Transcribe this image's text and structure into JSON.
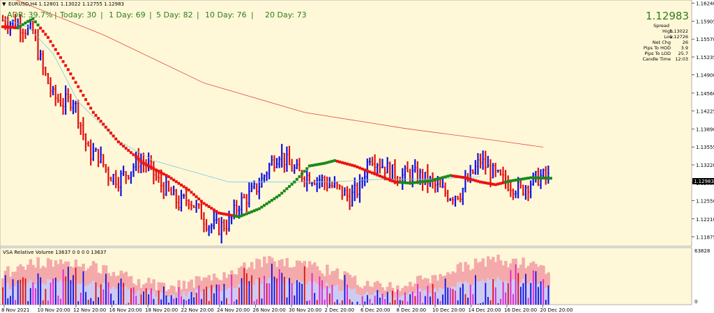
{
  "window": {
    "symbol_line": "EURUSD,H4  1.12801 1.13022 1.12755 1.12983",
    "volume_label": "VSA Relative Volume 13637 0 0 0 0 13637"
  },
  "adr_bar": {
    "adr": "ADR: 39.7%",
    "today": "Today: 30",
    "d1": "1 Day: 69",
    "d5": "5 Day: 82",
    "d10": "10 Day: 76",
    "d20": "20 Day: 73",
    "sep": "|"
  },
  "info_panel": {
    "price": "1.12983",
    "spread_label": "Spread",
    "high_label": "High",
    "high_value": "1.13022",
    "low_label": "Low",
    "low_value": "1.12726",
    "netchg_label": "Net Chg",
    "netchg_value": "26",
    "hod_label": "Pips To HOD",
    "hod_value": "3.9",
    "lod_label": "Pips To LOD",
    "lod_value": "25.7",
    "candle_label": "Candle Time",
    "candle_value": "12:03"
  },
  "current_price_tag": "1.12983",
  "colors": {
    "background": "#FFF8D8",
    "candle_up": "#1010E0",
    "candle_down": "#E01010",
    "ma_slow": "#E8453C",
    "ma_mid": "#7EC8E3",
    "trend_up": "#1A8A1A",
    "trend_down": "#EE1111",
    "adr_text": "#2E7D1A"
  },
  "chart_data": [
    {
      "type": "candlestick",
      "title": "EURUSD,H4  1.12801 1.13022 1.12755 1.12983",
      "y_ticks": [
        "1.16240",
        "1.15905",
        "1.15570",
        "1.15235",
        "1.14900",
        "1.14560",
        "1.14225",
        "1.13890",
        "1.13555",
        "1.13220",
        "1.12885",
        "1.12550",
        "1.12210",
        "1.11875"
      ],
      "ylim": [
        1.117,
        1.163
      ],
      "x_ticks": [
        "8 Nov 2021",
        "10 Nov 20:00",
        "12 Nov 20:00",
        "16 Nov 20:00",
        "18 Nov 20:00",
        "22 Nov 20:00",
        "24 Nov 20:00",
        "26 Nov 20:00",
        "30 Nov 20:00",
        "2 Dec 20:00",
        "6 Dec 20:00",
        "8 Dec 20:00",
        "10 Dec 20:00",
        "14 Dec 20:00",
        "16 Dec 20:00",
        "20 Dec 20:00"
      ],
      "close_path": [
        [
          0,
          1.1592
        ],
        [
          6,
          1.1585
        ],
        [
          12,
          1.1568
        ],
        [
          16,
          1.15
        ],
        [
          20,
          1.145
        ],
        [
          24,
          1.1438
        ],
        [
          28,
          1.1445
        ],
        [
          30,
          1.1415
        ],
        [
          34,
          1.1345
        ],
        [
          38,
          1.134
        ],
        [
          42,
          1.1305
        ],
        [
          46,
          1.1295
        ],
        [
          50,
          1.131
        ],
        [
          54,
          1.133
        ],
        [
          58,
          1.132
        ],
        [
          62,
          1.129
        ],
        [
          66,
          1.127
        ],
        [
          70,
          1.125
        ],
        [
          74,
          1.126
        ],
        [
          78,
          1.1235
        ],
        [
          82,
          1.121
        ],
        [
          86,
          1.1205
        ],
        [
          90,
          1.1215
        ],
        [
          94,
          1.125
        ],
        [
          98,
          1.1265
        ],
        [
          102,
          1.1285
        ],
        [
          106,
          1.132
        ],
        [
          110,
          1.1345
        ],
        [
          114,
          1.132
        ],
        [
          118,
          1.1305
        ],
        [
          122,
          1.13
        ],
        [
          126,
          1.1295
        ],
        [
          130,
          1.1285
        ],
        [
          134,
          1.1275
        ],
        [
          138,
          1.126
        ],
        [
          142,
          1.128
        ],
        [
          146,
          1.134
        ],
        [
          150,
          1.1325
        ],
        [
          154,
          1.131
        ],
        [
          158,
          1.13
        ],
        [
          162,
          1.1305
        ],
        [
          166,
          1.13
        ],
        [
          170,
          1.129
        ],
        [
          174,
          1.1275
        ],
        [
          178,
          1.1265
        ],
        [
          182,
          1.127
        ],
        [
          186,
          1.13
        ],
        [
          190,
          1.133
        ],
        [
          194,
          1.131
        ],
        [
          198,
          1.1295
        ],
        [
          202,
          1.1285
        ],
        [
          206,
          1.1275
        ],
        [
          210,
          1.129
        ],
        [
          214,
          1.13
        ],
        [
          218,
          1.1298
        ]
      ],
      "current_price": 1.12983,
      "indicators": [
        {
          "name": "",
          "points": [
            [
              0,
              1.164
            ],
            [
              40,
              1.1565
            ],
            [
              80,
              1.1475
            ],
            [
              120,
              1.142
            ],
            [
              160,
              1.139
            ],
            [
              200,
              1.1365
            ],
            [
              215,
              1.1355
            ]
          ]
        },
        {
          "name": "",
          "points": [
            [
              0,
              1.1595
            ],
            [
              10,
              1.158
            ],
            [
              20,
              1.153
            ],
            [
              30,
              1.144
            ],
            [
              45,
              1.137
            ],
            [
              60,
              1.133
            ],
            [
              75,
              1.131
            ],
            [
              90,
              1.129
            ],
            [
              110,
              1.129
            ],
            [
              130,
              1.129
            ],
            [
              150,
              1.1295
            ],
            [
              170,
              1.1295
            ],
            [
              190,
              1.13
            ]
          ]
        }
      ],
      "trend_line": [
        [
          0,
          1.158
        ],
        [
          6,
          1.1578
        ],
        [
          10,
          1.159
        ],
        [
          12,
          1.1595
        ],
        [
          18,
          1.156
        ],
        [
          26,
          1.15
        ],
        [
          36,
          1.142
        ],
        [
          46,
          1.1365
        ],
        [
          56,
          1.1325
        ],
        [
          66,
          1.13
        ],
        [
          74,
          1.1275
        ],
        [
          80,
          1.125
        ],
        [
          86,
          1.1232
        ],
        [
          94,
          1.1225
        ],
        [
          102,
          1.124
        ],
        [
          110,
          1.1265
        ],
        [
          116,
          1.129
        ],
        [
          122,
          1.132
        ],
        [
          128,
          1.1325
        ],
        [
          132,
          1.133
        ],
        [
          140,
          1.132
        ],
        [
          148,
          1.1305
        ],
        [
          156,
          1.129
        ],
        [
          162,
          1.1288
        ],
        [
          170,
          1.1292
        ],
        [
          178,
          1.1302
        ],
        [
          184,
          1.1298
        ],
        [
          190,
          1.129
        ],
        [
          196,
          1.1285
        ],
        [
          202,
          1.1292
        ],
        [
          210,
          1.1298
        ],
        [
          218,
          1.1297
        ]
      ],
      "trend_up_ranges": [
        [
          6,
          14
        ],
        [
          92,
          132
        ],
        [
          158,
          178
        ],
        [
          200,
          218
        ]
      ]
    },
    {
      "type": "bar",
      "title": "VSA Relative Volume 13637 0 0 0 0 13637",
      "y_ticks": [
        "63828",
        "0"
      ],
      "ylim": [
        0,
        63828
      ],
      "bars": 218
    }
  ]
}
